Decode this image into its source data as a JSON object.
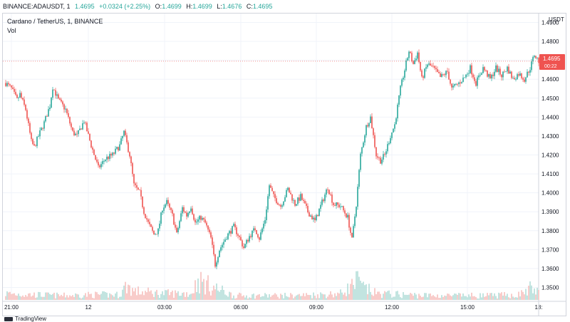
{
  "header": {
    "symbol": "BINANCE:ADAUSDT, 1",
    "last": "1.4695",
    "change": "+0.0324 (+2.25%)",
    "o_label": "O:",
    "o": "1.4699",
    "h_label": "H:",
    "h": "1.4699",
    "l_label": "L:",
    "l": "1.4676",
    "c_label": "C:",
    "c": "1.4695"
  },
  "legend": {
    "title": "Cardano / TetherUS, 1, BINANCE",
    "volume_label": "Vol"
  },
  "price_label": {
    "value": "1.4695",
    "countdown": "00:22"
  },
  "branding": {
    "logo_text": "TradingView"
  },
  "colors": {
    "up": "#26a69a",
    "down": "#ef5350",
    "vol_up": "#a7d8d3",
    "vol_down": "#f4b6b4",
    "grid": "#f0f3fa",
    "axis_text": "#131722",
    "last_line": "#ef5350"
  },
  "chart_data": {
    "type": "candlestick",
    "title": "Cardano / TetherUS, 1, BINANCE",
    "y_axis_unit": "USDT",
    "ylim": [
      1.345,
      1.492
    ],
    "y_ticks": [
      "1.4900",
      "1.4800",
      "1.4700",
      "1.4600",
      "1.4500",
      "1.4400",
      "1.4300",
      "1.4200",
      "1.4100",
      "1.4000",
      "1.3900",
      "1.3800",
      "1.3700",
      "1.3600",
      "1.3500"
    ],
    "x_ticks": [
      "21:00",
      "12",
      "03:00",
      "06:00",
      "09:00",
      "12:00",
      "15:00",
      "18:"
    ],
    "last_price": 1.4695,
    "grid": true,
    "close_path": [
      [
        0,
        1.458
      ],
      [
        4,
        1.455
      ],
      [
        8,
        1.449
      ],
      [
        10,
        1.452
      ],
      [
        14,
        1.444
      ],
      [
        18,
        1.427
      ],
      [
        20,
        1.424
      ],
      [
        23,
        1.43
      ],
      [
        27,
        1.437
      ],
      [
        31,
        1.446
      ],
      [
        33,
        1.456
      ],
      [
        37,
        1.449
      ],
      [
        42,
        1.444
      ],
      [
        47,
        1.432
      ],
      [
        50,
        1.43
      ],
      [
        55,
        1.438
      ],
      [
        60,
        1.425
      ],
      [
        65,
        1.413
      ],
      [
        70,
        1.418
      ],
      [
        75,
        1.42
      ],
      [
        80,
        1.425
      ],
      [
        83,
        1.432
      ],
      [
        87,
        1.42
      ],
      [
        90,
        1.404
      ],
      [
        94,
        1.4
      ],
      [
        97,
        1.39
      ],
      [
        100,
        1.384
      ],
      [
        104,
        1.378
      ],
      [
        107,
        1.38
      ],
      [
        110,
        1.392
      ],
      [
        113,
        1.395
      ],
      [
        117,
        1.388
      ],
      [
        120,
        1.378
      ],
      [
        124,
        1.392
      ],
      [
        127,
        1.388
      ],
      [
        130,
        1.393
      ],
      [
        133,
        1.384
      ],
      [
        137,
        1.387
      ],
      [
        140,
        1.384
      ],
      [
        144,
        1.376
      ],
      [
        147,
        1.362
      ],
      [
        150,
        1.37
      ],
      [
        155,
        1.377
      ],
      [
        160,
        1.382
      ],
      [
        163,
        1.378
      ],
      [
        167,
        1.371
      ],
      [
        171,
        1.377
      ],
      [
        175,
        1.381
      ],
      [
        178,
        1.376
      ],
      [
        182,
        1.386
      ],
      [
        185,
        1.404
      ],
      [
        188,
        1.398
      ],
      [
        193,
        1.393
      ],
      [
        198,
        1.402
      ],
      [
        203,
        1.394
      ],
      [
        207,
        1.398
      ],
      [
        212,
        1.39
      ],
      [
        217,
        1.385
      ],
      [
        222,
        1.395
      ],
      [
        226,
        1.403
      ],
      [
        230,
        1.394
      ],
      [
        235,
        1.393
      ],
      [
        240,
        1.387
      ],
      [
        243,
        1.375
      ],
      [
        246,
        1.394
      ],
      [
        249,
        1.42
      ],
      [
        253,
        1.435
      ],
      [
        256,
        1.44
      ],
      [
        260,
        1.42
      ],
      [
        263,
        1.417
      ],
      [
        266,
        1.42
      ],
      [
        270,
        1.43
      ],
      [
        273,
        1.436
      ],
      [
        277,
        1.455
      ],
      [
        280,
        1.465
      ],
      [
        283,
        1.475
      ],
      [
        286,
        1.468
      ],
      [
        289,
        1.474
      ],
      [
        292,
        1.46
      ],
      [
        296,
        1.468
      ],
      [
        300,
        1.466
      ],
      [
        305,
        1.461
      ],
      [
        310,
        1.464
      ],
      [
        313,
        1.455
      ],
      [
        318,
        1.458
      ],
      [
        322,
        1.461
      ],
      [
        326,
        1.466
      ],
      [
        330,
        1.458
      ],
      [
        335,
        1.466
      ],
      [
        340,
        1.46
      ],
      [
        344,
        1.466
      ],
      [
        348,
        1.462
      ],
      [
        352,
        1.466
      ],
      [
        356,
        1.46
      ],
      [
        360,
        1.463
      ],
      [
        364,
        1.46
      ],
      [
        368,
        1.466
      ],
      [
        371,
        1.473
      ],
      [
        374,
        1.4695
      ]
    ],
    "volume_path": [
      [
        0,
        0.15
      ],
      [
        20,
        0.12
      ],
      [
        40,
        0.1
      ],
      [
        60,
        0.12
      ],
      [
        80,
        0.12
      ],
      [
        85,
        0.35
      ],
      [
        90,
        0.2
      ],
      [
        110,
        0.15
      ],
      [
        130,
        0.15
      ],
      [
        135,
        0.45
      ],
      [
        145,
        0.3
      ],
      [
        160,
        0.1
      ],
      [
        180,
        0.1
      ],
      [
        200,
        0.1
      ],
      [
        220,
        0.12
      ],
      [
        235,
        0.15
      ],
      [
        244,
        0.35
      ],
      [
        247,
        0.45
      ],
      [
        250,
        0.3
      ],
      [
        260,
        0.15
      ],
      [
        280,
        0.12
      ],
      [
        300,
        0.1
      ],
      [
        320,
        0.1
      ],
      [
        340,
        0.1
      ],
      [
        360,
        0.12
      ],
      [
        370,
        0.3
      ],
      [
        374,
        0.15
      ]
    ]
  }
}
